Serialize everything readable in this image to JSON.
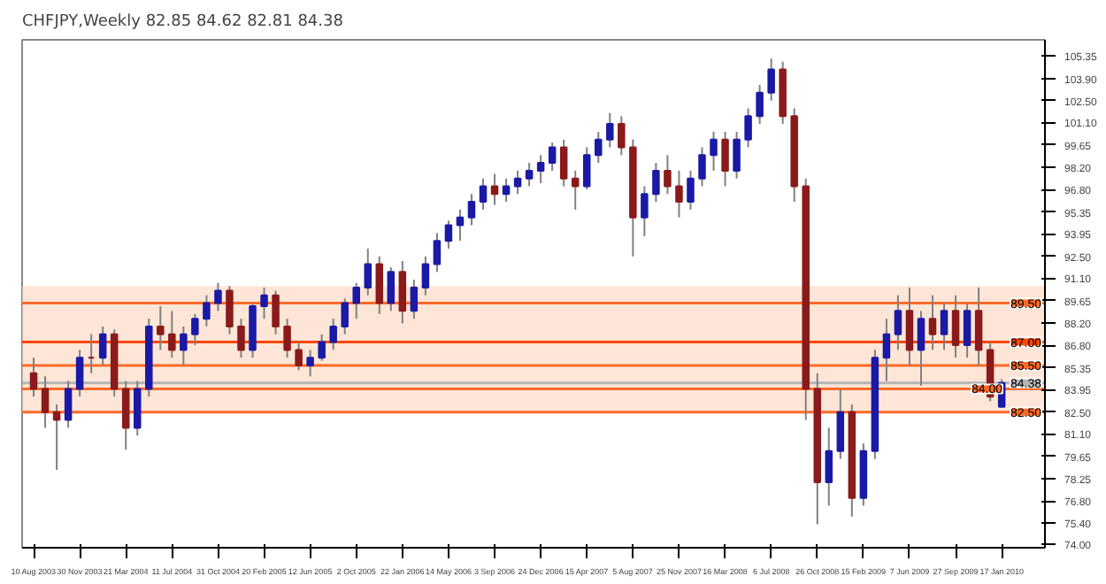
{
  "chart_data": {
    "type": "candlestick",
    "title": "CHFJPY,Weekly 82.85 84.62 82.81 84.38",
    "x": [
      "2003-08-10",
      "2003-09-07",
      "2003-10-05",
      "2003-11-02",
      "2003-11-30",
      "2003-12-28",
      "2004-01-25",
      "2004-02-22",
      "2004-03-21",
      "2004-04-18",
      "2004-05-16",
      "2004-06-13",
      "2004-07-11",
      "2004-08-08",
      "2004-09-05",
      "2004-10-03",
      "2004-10-31",
      "2004-11-28",
      "2004-12-26",
      "2005-01-23",
      "2005-02-20",
      "2005-03-20",
      "2005-04-17",
      "2005-05-15",
      "2005-06-12",
      "2005-07-10",
      "2005-08-07",
      "2005-09-04",
      "2005-10-02",
      "2005-10-30",
      "2005-11-27",
      "2005-12-25",
      "2006-01-22",
      "2006-02-19",
      "2006-03-19",
      "2006-04-16",
      "2006-05-14",
      "2006-06-11",
      "2006-07-09",
      "2006-08-06",
      "2006-09-03",
      "2006-10-01",
      "2006-10-29",
      "2006-11-26",
      "2006-12-24",
      "2007-01-21",
      "2007-02-18",
      "2007-03-18",
      "2007-04-15",
      "2007-05-13",
      "2007-06-10",
      "2007-07-08",
      "2007-08-05",
      "2007-09-02",
      "2007-09-30",
      "2007-10-28",
      "2007-11-25",
      "2007-12-23",
      "2008-01-20",
      "2008-02-17",
      "2008-03-16",
      "2008-04-13",
      "2008-05-11",
      "2008-06-08",
      "2008-07-06",
      "2008-08-03",
      "2008-08-31",
      "2008-09-28",
      "2008-10-26",
      "2008-11-23",
      "2008-12-21",
      "2009-01-18",
      "2009-02-15",
      "2009-03-15",
      "2009-04-12",
      "2009-05-10",
      "2009-06-07",
      "2009-07-05",
      "2009-08-02",
      "2009-08-30",
      "2009-09-27",
      "2009-10-25",
      "2009-11-22",
      "2009-12-20",
      "2010-01-17"
    ],
    "ohlc": [
      [
        85.0,
        86.0,
        83.5,
        84.0
      ],
      [
        84.0,
        84.8,
        81.5,
        82.5
      ],
      [
        82.5,
        83.0,
        78.8,
        82.0
      ],
      [
        82.0,
        84.5,
        81.5,
        84.0
      ],
      [
        84.0,
        86.5,
        83.5,
        86.0
      ],
      [
        86.0,
        87.5,
        85.0,
        86.0
      ],
      [
        86.0,
        88.0,
        85.5,
        87.5
      ],
      [
        87.5,
        87.8,
        83.5,
        84.0
      ],
      [
        84.0,
        84.5,
        80.1,
        81.5
      ],
      [
        81.5,
        84.5,
        81.0,
        84.0
      ],
      [
        84.0,
        88.5,
        83.5,
        88.0
      ],
      [
        88.0,
        89.3,
        86.5,
        87.5
      ],
      [
        87.5,
        89.0,
        86.0,
        86.5
      ],
      [
        86.5,
        88.0,
        85.5,
        87.5
      ],
      [
        87.5,
        88.8,
        86.8,
        88.5
      ],
      [
        88.5,
        90.0,
        88.0,
        89.5
      ],
      [
        89.5,
        90.8,
        89.0,
        90.3
      ],
      [
        90.3,
        90.6,
        87.5,
        88.0
      ],
      [
        88.0,
        88.5,
        86.0,
        86.5
      ],
      [
        86.5,
        89.5,
        86.0,
        89.3
      ],
      [
        89.3,
        90.5,
        88.5,
        90.0
      ],
      [
        90.0,
        90.3,
        87.5,
        88.0
      ],
      [
        88.0,
        88.5,
        86.0,
        86.5
      ],
      [
        86.5,
        87.0,
        85.2,
        85.5
      ],
      [
        85.5,
        86.5,
        84.8,
        86.0
      ],
      [
        86.0,
        87.5,
        85.8,
        87.0
      ],
      [
        87.0,
        88.5,
        86.5,
        88.0
      ],
      [
        88.0,
        89.8,
        87.5,
        89.5
      ],
      [
        89.5,
        90.8,
        88.5,
        90.5
      ],
      [
        90.5,
        93.0,
        90.0,
        92.0
      ],
      [
        92.0,
        92.5,
        88.8,
        89.5
      ],
      [
        89.5,
        91.8,
        89.0,
        91.5
      ],
      [
        91.5,
        92.2,
        88.2,
        89.0
      ],
      [
        89.0,
        91.0,
        88.5,
        90.5
      ],
      [
        90.5,
        92.5,
        90.0,
        92.0
      ],
      [
        92.0,
        94.0,
        91.5,
        93.5
      ],
      [
        93.5,
        94.8,
        93.0,
        94.5
      ],
      [
        94.5,
        95.5,
        93.5,
        95.0
      ],
      [
        95.0,
        96.5,
        94.5,
        96.0
      ],
      [
        96.0,
        97.5,
        95.5,
        97.0
      ],
      [
        97.0,
        97.8,
        95.8,
        96.5
      ],
      [
        96.5,
        97.5,
        96.0,
        97.0
      ],
      [
        97.0,
        98.0,
        96.5,
        97.5
      ],
      [
        97.5,
        98.5,
        97.0,
        98.0
      ],
      [
        98.0,
        99.0,
        97.2,
        98.5
      ],
      [
        98.5,
        99.8,
        98.0,
        99.5
      ],
      [
        99.5,
        100.0,
        97.0,
        97.5
      ],
      [
        97.5,
        98.0,
        95.5,
        97.0
      ],
      [
        97.0,
        99.5,
        96.8,
        99.0
      ],
      [
        99.0,
        100.5,
        98.5,
        100.0
      ],
      [
        100.0,
        101.7,
        99.5,
        101.0
      ],
      [
        101.0,
        101.5,
        99.0,
        99.5
      ],
      [
        99.5,
        100.0,
        92.5,
        95.0
      ],
      [
        95.0,
        97.0,
        93.8,
        96.5
      ],
      [
        96.5,
        98.5,
        96.0,
        98.0
      ],
      [
        98.0,
        99.0,
        96.5,
        97.0
      ],
      [
        97.0,
        98.0,
        95.0,
        96.0
      ],
      [
        96.0,
        98.0,
        95.5,
        97.5
      ],
      [
        97.5,
        99.5,
        97.0,
        99.0
      ],
      [
        99.0,
        100.5,
        98.0,
        100.0
      ],
      [
        100.0,
        100.5,
        97.0,
        98.0
      ],
      [
        98.0,
        100.5,
        97.5,
        100.0
      ],
      [
        100.0,
        102.0,
        99.5,
        101.5
      ],
      [
        101.5,
        103.5,
        101.0,
        103.0
      ],
      [
        103.0,
        105.2,
        102.5,
        104.5
      ],
      [
        104.5,
        105.0,
        101.0,
        101.5
      ],
      [
        101.5,
        102.0,
        96.0,
        97.0
      ],
      [
        97.0,
        97.5,
        82.0,
        84.0
      ],
      [
        84.0,
        85.0,
        75.3,
        78.0
      ],
      [
        78.0,
        81.5,
        76.5,
        80.0
      ],
      [
        80.0,
        84.0,
        79.5,
        82.5
      ],
      [
        82.5,
        83.0,
        75.8,
        77.0
      ],
      [
        77.0,
        80.5,
        76.5,
        80.0
      ],
      [
        80.0,
        86.5,
        79.5,
        86.0
      ],
      [
        86.0,
        88.5,
        84.5,
        87.5
      ],
      [
        87.5,
        90.0,
        86.5,
        89.0
      ],
      [
        89.0,
        90.5,
        85.5,
        86.5
      ],
      [
        86.5,
        89.0,
        84.2,
        88.5
      ],
      [
        88.5,
        90.0,
        86.5,
        87.5
      ],
      [
        87.5,
        89.5,
        86.5,
        89.0
      ],
      [
        89.0,
        90.0,
        86.0,
        86.8
      ],
      [
        86.8,
        89.5,
        86.0,
        89.0
      ],
      [
        89.0,
        90.5,
        85.5,
        86.5
      ],
      [
        86.5,
        87.0,
        83.2,
        83.5
      ],
      [
        82.85,
        84.62,
        82.81,
        84.38
      ]
    ],
    "colors": [
      "#8b1a1a",
      "#8b1a1a",
      "#8b1a1a",
      "#1a1aa6",
      "#1a1aa6",
      "#8b1a1a",
      "#1a1aa6",
      "#8b1a1a",
      "#8b1a1a",
      "#1a1aa6",
      "#1a1aa6",
      "#8b1a1a",
      "#8b1a1a",
      "#1a1aa6",
      "#1a1aa6",
      "#1a1aa6",
      "#1a1aa6",
      "#8b1a1a",
      "#8b1a1a",
      "#1a1aa6",
      "#1a1aa6",
      "#8b1a1a",
      "#8b1a1a",
      "#8b1a1a",
      "#1a1aa6",
      "#1a1aa6",
      "#1a1aa6",
      "#1a1aa6",
      "#1a1aa6",
      "#1a1aa6",
      "#8b1a1a",
      "#1a1aa6",
      "#8b1a1a",
      "#1a1aa6",
      "#1a1aa6",
      "#1a1aa6",
      "#1a1aa6",
      "#1a1aa6",
      "#1a1aa6",
      "#1a1aa6",
      "#8b1a1a",
      "#1a1aa6",
      "#1a1aa6",
      "#1a1aa6",
      "#1a1aa6",
      "#1a1aa6",
      "#8b1a1a",
      "#8b1a1a",
      "#1a1aa6",
      "#1a1aa6",
      "#1a1aa6",
      "#8b1a1a",
      "#8b1a1a",
      "#1a1aa6",
      "#1a1aa6",
      "#8b1a1a",
      "#8b1a1a",
      "#1a1aa6",
      "#1a1aa6",
      "#1a1aa6",
      "#8b1a1a",
      "#1a1aa6",
      "#1a1aa6",
      "#1a1aa6",
      "#1a1aa6",
      "#8b1a1a",
      "#8b1a1a",
      "#8b1a1a",
      "#8b1a1a",
      "#1a1aa6",
      "#1a1aa6",
      "#8b1a1a",
      "#1a1aa6",
      "#1a1aa6",
      "#1a1aa6",
      "#1a1aa6",
      "#8b1a1a",
      "#1a1aa6",
      "#8b1a1a",
      "#1a1aa6",
      "#8b1a1a",
      "#1a1aa6",
      "#8b1a1a",
      "#8b1a1a",
      "#1a1aa6"
    ],
    "xlim": [
      "2003-07-13",
      "2010-05-02"
    ],
    "xticks": [
      {
        "value": "2003-08-10",
        "label": "10 Aug 2003"
      },
      {
        "value": "2003-11-30",
        "label": "30 Nov 2003"
      },
      {
        "value": "2004-03-21",
        "label": "21 Mar 2004"
      },
      {
        "value": "2004-07-11",
        "label": "11 Jul 2004"
      },
      {
        "value": "2004-10-31",
        "label": "31 Oct 2004"
      },
      {
        "value": "2005-02-20",
        "label": "20 Feb 2005"
      },
      {
        "value": "2005-06-12",
        "label": "12 Jun 2005"
      },
      {
        "value": "2005-10-02",
        "label": "2 Oct 2005"
      },
      {
        "value": "2006-01-22",
        "label": "22 Jan 2006"
      },
      {
        "value": "2006-05-14",
        "label": "14 May 2006"
      },
      {
        "value": "2006-09-03",
        "label": "3 Sep 2006"
      },
      {
        "value": "2006-12-24",
        "label": "24 Dec 2006"
      },
      {
        "value": "2007-04-15",
        "label": "15 Apr 2007"
      },
      {
        "value": "2007-08-05",
        "label": "5 Aug 2007"
      },
      {
        "value": "2007-11-25",
        "label": "25 Nov 2007"
      },
      {
        "value": "2008-03-16",
        "label": "16 Mar 2008"
      },
      {
        "value": "2008-07-06",
        "label": "6 Jul 2008"
      },
      {
        "value": "2008-10-26",
        "label": "26 Oct 2008"
      },
      {
        "value": "2009-02-15",
        "label": "15 Feb 2009"
      },
      {
        "value": "2009-06-07",
        "label": "7 Jun 2009"
      },
      {
        "value": "2009-09-27",
        "label": "27 Sep 2009"
      },
      {
        "value": "2010-01-17",
        "label": "17 Jan 2010"
      }
    ],
    "ylim": [
      73.8,
      106.4
    ],
    "yticks": [
      {
        "value": 105.35,
        "label": "105.35"
      },
      {
        "value": 103.9,
        "label": "103.90"
      },
      {
        "value": 102.5,
        "label": "102.50"
      },
      {
        "value": 101.1,
        "label": "101.10"
      },
      {
        "value": 99.65,
        "label": "99.65"
      },
      {
        "value": 98.2,
        "label": "98.20"
      },
      {
        "value": 96.8,
        "label": "96.80"
      },
      {
        "value": 95.35,
        "label": "95.35"
      },
      {
        "value": 93.95,
        "label": "93.95"
      },
      {
        "value": 92.5,
        "label": "92.50"
      },
      {
        "value": 91.1,
        "label": "91.10"
      },
      {
        "value": 89.65,
        "label": "89.65"
      },
      {
        "value": 88.2,
        "label": "88.20"
      },
      {
        "value": 86.8,
        "label": "86.80"
      },
      {
        "value": 85.35,
        "label": "85.35"
      },
      {
        "value": 83.95,
        "label": "83.95"
      },
      {
        "value": 82.5,
        "label": "82.50"
      },
      {
        "value": 81.1,
        "label": "81.10"
      },
      {
        "value": 79.65,
        "label": "79.65"
      },
      {
        "value": 78.25,
        "label": "78.25"
      },
      {
        "value": 76.8,
        "label": "76.80"
      },
      {
        "value": 75.4,
        "label": "75.40"
      },
      {
        "value": 74.0,
        "label": "74.00"
      }
    ],
    "ref_lines": [
      {
        "axis": "y",
        "value": 89.5,
        "label": "89.50",
        "color": "#ff6a28"
      },
      {
        "axis": "y",
        "value": 87.0,
        "label": "87.00",
        "color": "#ff4500"
      },
      {
        "axis": "y",
        "value": 85.5,
        "label": "85.50",
        "color": "#ff6a28"
      },
      {
        "axis": "y",
        "value": 84.38,
        "label": "84.38",
        "color": "#b4b4b4"
      },
      {
        "axis": "y",
        "value": 84.0,
        "label": "84.00",
        "color": "#ff6a28"
      },
      {
        "axis": "y",
        "value": 82.5,
        "label": "82.50",
        "color": "#ff6a28"
      }
    ],
    "bands": [
      {
        "axis": "y",
        "from": 82.4,
        "to": 90.6,
        "color": "#fcd5bc"
      }
    ],
    "grid": false
  }
}
